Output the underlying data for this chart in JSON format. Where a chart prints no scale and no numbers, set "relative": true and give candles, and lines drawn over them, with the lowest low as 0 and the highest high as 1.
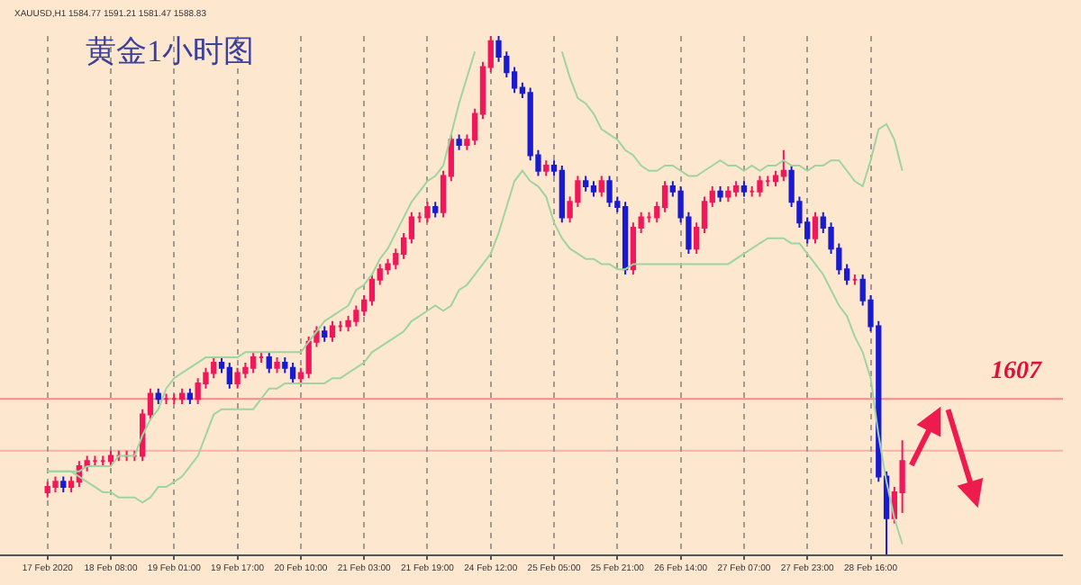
{
  "chart_data": {
    "type": "candlestick",
    "title": "黄金1小时图",
    "relative": true,
    "grid": "x",
    "annotations": [
      "XAUUSD,H1 1584.77 1591.21 1581.47 1588.83",
      "1607"
    ],
    "categories": [
      "17 Feb 2020",
      null,
      null,
      null,
      null,
      null,
      null,
      null,
      "18 Feb 08:00",
      null,
      null,
      null,
      null,
      null,
      null,
      null,
      "19 Feb 01:00",
      null,
      null,
      null,
      null,
      null,
      null,
      null,
      "19 Feb 17:00",
      null,
      null,
      null,
      null,
      null,
      null,
      null,
      "20 Feb 10:00",
      null,
      null,
      null,
      null,
      null,
      null,
      null,
      "21 Feb 03:00",
      null,
      null,
      null,
      null,
      null,
      null,
      null,
      "21 Feb 19:00",
      null,
      null,
      null,
      null,
      null,
      null,
      null,
      "24 Feb 12:00",
      null,
      null,
      null,
      null,
      null,
      null,
      null,
      "25 Feb 05:00",
      null,
      null,
      null,
      null,
      null,
      null,
      null,
      "25 Feb 21:00",
      null,
      null,
      null,
      null,
      null,
      null,
      null,
      "26 Feb 14:00",
      null,
      null,
      null,
      null,
      null,
      null,
      null,
      "27 Feb 07:00",
      null,
      null,
      null,
      null,
      null,
      null,
      null,
      "27 Feb 23:00",
      null,
      null,
      null,
      null,
      null,
      null,
      null,
      "28 Feb 16:00",
      null,
      null,
      null,
      null
    ],
    "colors": [
      "#f0185a",
      "#f0185a",
      "#1a1ad0",
      "#f0185a",
      "#f0185a",
      "#f0185a",
      "#f0185a",
      "#f0185a",
      "#f0185a",
      "#f0185a",
      "#f0185a",
      "#f0185a",
      "#f0185a",
      "#f0185a",
      "#1a1ad0",
      "#f0185a",
      "#f0185a",
      "#f0185a",
      "#1a1ad0",
      "#f0185a",
      "#f0185a",
      "#f0185a",
      "#1a1ad0",
      "#1a1ad0",
      "#f0185a",
      "#f0185a",
      "#f0185a",
      "#f0185a",
      "#1a1ad0",
      "#f0185a",
      "#1a1ad0",
      "#1a1ad0",
      "#f0185a",
      "#f0185a",
      "#f0185a",
      "#1a1ad0",
      "#f0185a",
      "#f0185a",
      "#f0185a",
      "#f0185a",
      "#f0185a",
      "#f0185a",
      "#f0185a",
      "#f0185a",
      "#f0185a",
      "#f0185a",
      "#f0185a",
      "#f0185a",
      "#f0185a",
      "#1a1ad0",
      "#f0185a",
      "#f0185a",
      "#1a1ad0",
      "#f0185a",
      "#f0185a",
      "#f0185a",
      "#f0185a",
      "#1a1ad0",
      "#1a1ad0",
      "#1a1ad0",
      "#1a1ad0",
      "#1a1ad0",
      "#1a1ad0",
      "#f0185a",
      "#1a1ad0",
      "#1a1ad0",
      "#f0185a",
      "#f0185a",
      "#1a1ad0",
      "#1a1ad0",
      "#f0185a",
      "#1a1ad0",
      "#1a1ad0",
      "#1a1ad0",
      "#f0185a",
      "#f0185a",
      "#f0185a",
      "#f0185a",
      "#f0185a",
      "#1a1ad0",
      "#1a1ad0",
      "#1a1ad0",
      "#f0185a",
      "#f0185a",
      "#f0185a",
      "#1a1ad0",
      "#f0185a",
      "#f0185a",
      "#1a1ad0",
      "#f0185a",
      "#f0185a",
      "#f0185a",
      "#f0185a",
      "#f0185a",
      "#1a1ad0",
      "#1a1ad0",
      "#1a1ad0",
      "#f0185a",
      "#1a1ad0",
      "#1a1ad0",
      "#1a1ad0",
      "#1a1ad0",
      "#f0185a",
      "#1a1ad0",
      "#1a1ad0",
      "#1a1ad0",
      "#1a1ad0",
      "#f0185a",
      "#f0185a"
    ],
    "ohlc": [
      [
        0.12,
        0.14,
        0.11,
        0.13
      ],
      [
        0.13,
        0.15,
        0.12,
        0.14
      ],
      [
        0.14,
        0.15,
        0.12,
        0.13
      ],
      [
        0.13,
        0.15,
        0.12,
        0.14
      ],
      [
        0.14,
        0.18,
        0.13,
        0.17
      ],
      [
        0.17,
        0.19,
        0.16,
        0.18
      ],
      [
        0.18,
        0.19,
        0.17,
        0.18
      ],
      [
        0.18,
        0.19,
        0.17,
        0.18
      ],
      [
        0.18,
        0.2,
        0.17,
        0.19
      ],
      [
        0.19,
        0.2,
        0.18,
        0.19
      ],
      [
        0.19,
        0.2,
        0.18,
        0.19
      ],
      [
        0.19,
        0.2,
        0.18,
        0.19
      ],
      [
        0.19,
        0.28,
        0.18,
        0.27
      ],
      [
        0.27,
        0.32,
        0.26,
        0.31
      ],
      [
        0.31,
        0.32,
        0.29,
        0.3
      ],
      [
        0.3,
        0.31,
        0.29,
        0.3
      ],
      [
        0.3,
        0.31,
        0.29,
        0.3
      ],
      [
        0.3,
        0.32,
        0.29,
        0.31
      ],
      [
        0.31,
        0.32,
        0.29,
        0.3
      ],
      [
        0.3,
        0.34,
        0.29,
        0.33
      ],
      [
        0.33,
        0.36,
        0.32,
        0.35
      ],
      [
        0.35,
        0.38,
        0.34,
        0.37
      ],
      [
        0.37,
        0.38,
        0.35,
        0.36
      ],
      [
        0.36,
        0.37,
        0.32,
        0.33
      ],
      [
        0.33,
        0.36,
        0.32,
        0.35
      ],
      [
        0.35,
        0.37,
        0.34,
        0.36
      ],
      [
        0.36,
        0.39,
        0.35,
        0.38
      ],
      [
        0.38,
        0.39,
        0.37,
        0.38
      ],
      [
        0.38,
        0.39,
        0.35,
        0.36
      ],
      [
        0.36,
        0.38,
        0.35,
        0.37
      ],
      [
        0.37,
        0.38,
        0.35,
        0.36
      ],
      [
        0.36,
        0.37,
        0.33,
        0.34
      ],
      [
        0.34,
        0.36,
        0.33,
        0.35
      ],
      [
        0.35,
        0.42,
        0.34,
        0.41
      ],
      [
        0.41,
        0.44,
        0.4,
        0.43
      ],
      [
        0.43,
        0.44,
        0.41,
        0.42
      ],
      [
        0.42,
        0.45,
        0.41,
        0.44
      ],
      [
        0.44,
        0.45,
        0.43,
        0.44
      ],
      [
        0.44,
        0.46,
        0.43,
        0.45
      ],
      [
        0.45,
        0.48,
        0.44,
        0.47
      ],
      [
        0.47,
        0.5,
        0.46,
        0.49
      ],
      [
        0.49,
        0.54,
        0.48,
        0.53
      ],
      [
        0.53,
        0.56,
        0.52,
        0.55
      ],
      [
        0.55,
        0.57,
        0.54,
        0.56
      ],
      [
        0.56,
        0.59,
        0.55,
        0.58
      ],
      [
        0.58,
        0.62,
        0.57,
        0.61
      ],
      [
        0.61,
        0.66,
        0.6,
        0.65
      ],
      [
        0.65,
        0.66,
        0.64,
        0.65
      ],
      [
        0.65,
        0.68,
        0.64,
        0.67
      ],
      [
        0.67,
        0.68,
        0.65,
        0.66
      ],
      [
        0.66,
        0.74,
        0.65,
        0.73
      ],
      [
        0.73,
        0.81,
        0.72,
        0.8
      ],
      [
        0.8,
        0.81,
        0.78,
        0.79
      ],
      [
        0.79,
        0.81,
        0.78,
        0.8
      ],
      [
        0.8,
        0.86,
        0.79,
        0.85
      ],
      [
        0.85,
        0.95,
        0.84,
        0.94
      ],
      [
        0.94,
        1.0,
        0.93,
        0.99
      ],
      [
        0.99,
        1.0,
        0.95,
        0.96
      ],
      [
        0.96,
        0.97,
        0.92,
        0.93
      ],
      [
        0.93,
        0.94,
        0.89,
        0.9
      ],
      [
        0.9,
        0.91,
        0.88,
        0.89
      ],
      [
        0.89,
        0.9,
        0.76,
        0.77
      ],
      [
        0.77,
        0.78,
        0.73,
        0.74
      ],
      [
        0.74,
        0.76,
        0.73,
        0.75
      ],
      [
        0.75,
        0.76,
        0.73,
        0.74
      ],
      [
        0.74,
        0.75,
        0.64,
        0.65
      ],
      [
        0.65,
        0.69,
        0.64,
        0.68
      ],
      [
        0.68,
        0.73,
        0.67,
        0.72
      ],
      [
        0.72,
        0.73,
        0.7,
        0.71
      ],
      [
        0.71,
        0.72,
        0.69,
        0.7
      ],
      [
        0.7,
        0.73,
        0.69,
        0.72
      ],
      [
        0.72,
        0.73,
        0.67,
        0.68
      ],
      [
        0.68,
        0.69,
        0.66,
        0.67
      ],
      [
        0.67,
        0.68,
        0.54,
        0.55
      ],
      [
        0.55,
        0.64,
        0.54,
        0.63
      ],
      [
        0.63,
        0.66,
        0.62,
        0.65
      ],
      [
        0.65,
        0.66,
        0.64,
        0.65
      ],
      [
        0.65,
        0.68,
        0.64,
        0.67
      ],
      [
        0.67,
        0.72,
        0.66,
        0.71
      ],
      [
        0.71,
        0.72,
        0.69,
        0.7
      ],
      [
        0.7,
        0.71,
        0.64,
        0.65
      ],
      [
        0.65,
        0.66,
        0.58,
        0.59
      ],
      [
        0.59,
        0.64,
        0.58,
        0.63
      ],
      [
        0.63,
        0.69,
        0.62,
        0.68
      ],
      [
        0.68,
        0.71,
        0.67,
        0.7
      ],
      [
        0.7,
        0.71,
        0.68,
        0.69
      ],
      [
        0.69,
        0.71,
        0.68,
        0.7
      ],
      [
        0.7,
        0.72,
        0.69,
        0.71
      ],
      [
        0.71,
        0.72,
        0.69,
        0.7
      ],
      [
        0.7,
        0.71,
        0.69,
        0.7
      ],
      [
        0.7,
        0.73,
        0.69,
        0.72
      ],
      [
        0.72,
        0.73,
        0.71,
        0.72
      ],
      [
        0.72,
        0.74,
        0.71,
        0.73
      ],
      [
        0.73,
        0.78,
        0.72,
        0.74
      ],
      [
        0.74,
        0.75,
        0.67,
        0.68
      ],
      [
        0.68,
        0.69,
        0.63,
        0.64
      ],
      [
        0.64,
        0.65,
        0.6,
        0.61
      ],
      [
        0.61,
        0.66,
        0.6,
        0.65
      ],
      [
        0.65,
        0.66,
        0.62,
        0.63
      ],
      [
        0.63,
        0.64,
        0.58,
        0.59
      ],
      [
        0.59,
        0.6,
        0.54,
        0.55
      ],
      [
        0.55,
        0.56,
        0.52,
        0.53
      ],
      [
        0.53,
        0.54,
        0.52,
        0.53
      ],
      [
        0.53,
        0.54,
        0.48,
        0.49
      ],
      [
        0.49,
        0.5,
        0.43,
        0.44
      ],
      [
        0.44,
        0.45,
        0.14,
        0.15
      ],
      [
        0.15,
        0.16,
        0.0,
        0.07
      ],
      [
        0.07,
        0.13,
        0.06,
        0.12
      ],
      [
        0.12,
        0.22,
        0.08,
        0.18
      ]
    ],
    "series": [
      {
        "type": "line",
        "color": "#9fd4a0",
        "values": [
          0.16,
          0.16,
          0.16,
          0.16,
          0.16,
          0.17,
          0.17,
          0.17,
          0.17,
          0.19,
          0.19,
          0.19,
          0.23,
          0.26,
          0.28,
          0.32,
          0.34,
          0.35,
          0.36,
          0.37,
          0.38,
          0.38,
          0.38,
          0.38,
          0.38,
          0.39,
          0.39,
          0.39,
          0.39,
          0.39,
          0.39,
          0.39,
          0.39,
          0.41,
          0.43,
          0.45,
          0.46,
          0.47,
          0.48,
          0.51,
          0.52,
          0.54,
          0.57,
          0.59,
          0.62,
          0.65,
          0.68,
          0.7,
          0.72,
          0.73,
          0.75,
          0.81,
          0.87,
          0.92,
          0.97,
          null,
          null,
          null,
          null,
          null,
          null,
          null,
          null,
          null,
          null,
          0.97,
          0.92,
          0.88,
          0.87,
          0.85,
          0.82,
          0.81,
          0.8,
          0.78,
          0.77,
          0.75,
          0.74,
          0.74,
          0.75,
          0.75,
          0.74,
          0.73,
          0.73,
          0.74,
          0.75,
          0.76,
          0.75,
          0.75,
          0.74,
          0.75,
          0.74,
          0.75,
          0.75,
          0.76,
          0.75,
          0.75,
          0.74,
          0.75,
          0.75,
          0.76,
          0.76,
          0.74,
          0.72,
          0.71,
          0.76,
          0.82,
          0.83,
          0.8,
          0.74
        ]
      },
      {
        "type": "line",
        "color": "#9fd4a0",
        "values": [
          0.16,
          0.16,
          0.16,
          0.16,
          0.15,
          0.14,
          0.13,
          0.12,
          0.12,
          0.11,
          0.11,
          0.11,
          0.1,
          0.11,
          0.13,
          0.13,
          0.14,
          0.15,
          0.17,
          0.19,
          0.23,
          0.27,
          0.28,
          0.28,
          0.28,
          0.28,
          0.28,
          0.3,
          0.32,
          0.32,
          0.33,
          0.33,
          0.33,
          0.33,
          0.33,
          0.33,
          0.34,
          0.34,
          0.35,
          0.36,
          0.37,
          0.39,
          0.4,
          0.41,
          0.42,
          0.43,
          0.45,
          0.46,
          0.47,
          0.48,
          0.47,
          0.48,
          0.51,
          0.52,
          0.54,
          0.56,
          0.58,
          0.62,
          0.67,
          0.72,
          0.74,
          0.72,
          0.71,
          0.69,
          0.64,
          0.61,
          0.59,
          0.58,
          0.57,
          0.57,
          0.56,
          0.56,
          0.55,
          0.55,
          0.56,
          0.56,
          0.56,
          0.56,
          0.56,
          0.56,
          0.56,
          0.56,
          0.56,
          0.56,
          0.56,
          0.56,
          0.56,
          0.57,
          0.58,
          0.59,
          0.6,
          0.61,
          0.61,
          0.61,
          0.6,
          0.6,
          0.58,
          0.56,
          0.54,
          0.51,
          0.48,
          0.46,
          0.42,
          0.39,
          0.34,
          0.23,
          0.14,
          0.07,
          0.02
        ]
      }
    ],
    "ref_lines": [
      {
        "axis": "y",
        "value": 0.3,
        "color": "#f5888a"
      },
      {
        "axis": "y",
        "value": 0.2,
        "color": "#f6b2a6"
      }
    ]
  }
}
